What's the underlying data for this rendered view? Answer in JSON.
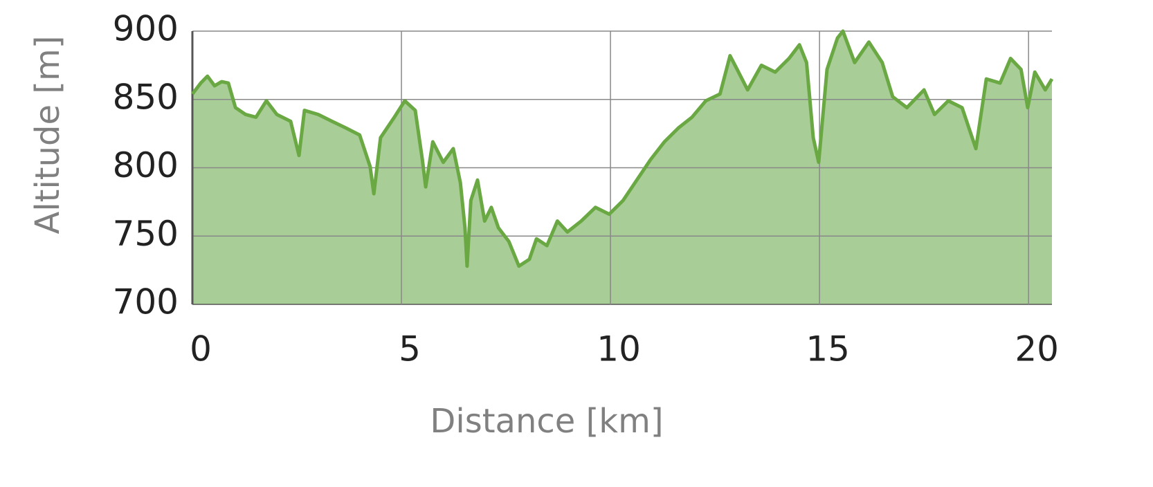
{
  "chart_data": {
    "type": "area",
    "x_label": "Distance [km]",
    "y_label": "Altitude [m]",
    "xlim": [
      0,
      20.56
    ],
    "ylim": [
      700,
      900
    ],
    "xticks": [
      0,
      5,
      10,
      15,
      20
    ],
    "yticks": [
      700,
      750,
      800,
      850,
      900
    ],
    "grid": true,
    "line_color": "#6aa843",
    "fill_color": "#a9cd96",
    "x": [
      0,
      0.2,
      0.36,
      0.53,
      0.7,
      0.86,
      1.03,
      1.27,
      1.52,
      1.77,
      2.02,
      2.35,
      2.55,
      2.68,
      3.01,
      3.34,
      3.68,
      4.0,
      4.25,
      4.34,
      4.5,
      4.83,
      5.08,
      5.33,
      5.5,
      5.58,
      5.75,
      6.0,
      6.24,
      6.41,
      6.52,
      6.57,
      6.66,
      6.82,
      6.99,
      7.15,
      7.32,
      7.57,
      7.81,
      8.06,
      8.23,
      8.48,
      8.73,
      8.97,
      9.3,
      9.64,
      9.97,
      10.3,
      10.63,
      10.96,
      11.29,
      11.62,
      11.95,
      12.28,
      12.62,
      12.86,
      13.03,
      13.28,
      13.61,
      13.94,
      14.27,
      14.52,
      14.69,
      14.85,
      14.98,
      15.18,
      15.43,
      15.56,
      15.84,
      16.18,
      16.5,
      16.75,
      17.09,
      17.5,
      17.75,
      18.08,
      18.41,
      18.74,
      18.99,
      19.32,
      19.57,
      19.82,
      19.98,
      20.15,
      20.4,
      20.56
    ],
    "values": [
      854,
      862,
      867,
      860,
      863,
      862,
      844,
      839,
      837,
      849,
      839,
      834,
      809,
      842,
      839,
      834,
      829,
      824,
      801,
      781,
      822,
      837,
      849,
      842,
      806,
      786,
      819,
      804,
      814,
      789,
      756,
      728,
      776,
      791,
      761,
      771,
      756,
      746,
      728,
      733,
      748,
      743,
      761,
      753,
      761,
      771,
      766,
      776,
      791,
      806,
      819,
      829,
      837,
      849,
      854,
      882,
      872,
      857,
      875,
      870,
      880,
      890,
      877,
      822,
      804,
      872,
      895,
      900,
      877,
      892,
      877,
      852,
      844,
      857,
      839,
      849,
      844,
      814,
      865,
      862,
      880,
      872,
      844,
      870,
      857,
      865
    ]
  }
}
